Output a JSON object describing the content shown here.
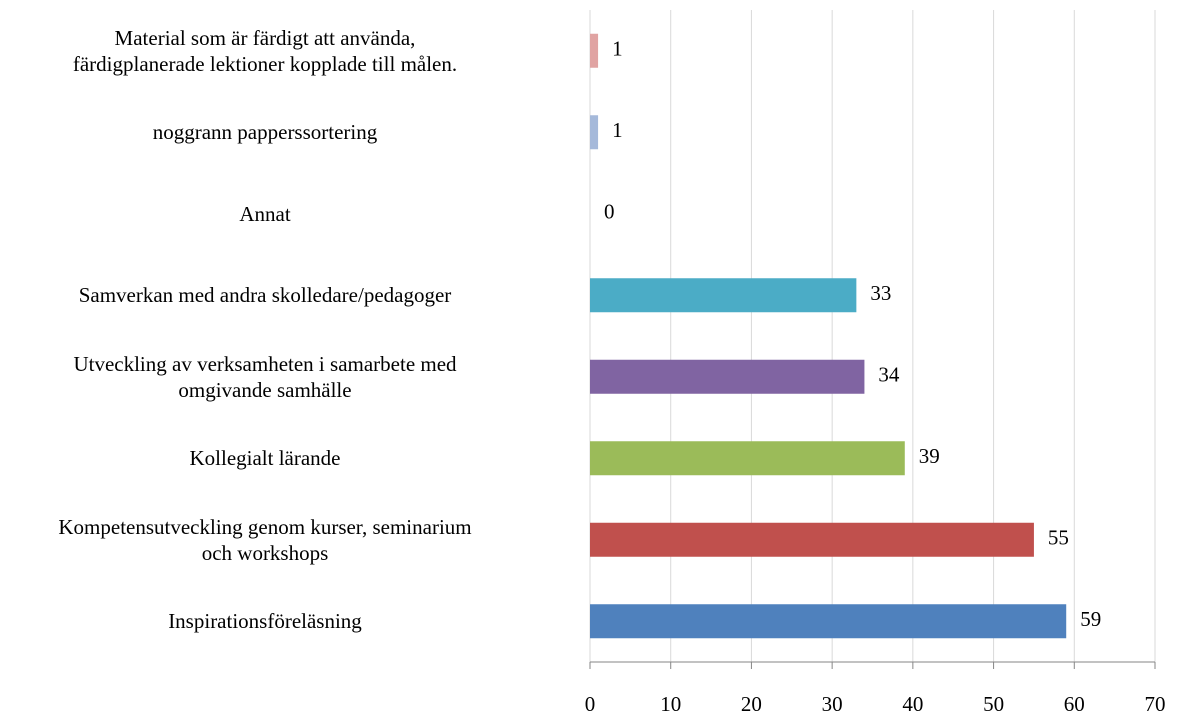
{
  "chart_data": {
    "type": "bar",
    "orientation": "horizontal",
    "categories": [
      "Inspirationsföreläsning",
      "Kompetensutveckling genom kurser, seminarium\noch workshops",
      "Kollegialt lärande",
      "Utveckling av verksamheten i samarbete med\nomgivande samhälle",
      "Samverkan med andra skolledare/pedagoger",
      "Annat",
      "noggrann papperssortering",
      "Material som är färdigt att använda,\nfärdigplanerade lektioner kopplade till målen."
    ],
    "values": [
      59,
      55,
      39,
      34,
      33,
      0,
      1,
      1
    ],
    "colors": [
      "#4f81bd",
      "#c0504d",
      "#9bbb59",
      "#8064a2",
      "#4bacc6",
      null,
      "#a5b9da",
      "#e0a3a2"
    ],
    "xlim": [
      0,
      70
    ],
    "xticks": [
      0,
      10,
      20,
      30,
      40,
      50,
      60,
      70
    ],
    "grid": true
  }
}
